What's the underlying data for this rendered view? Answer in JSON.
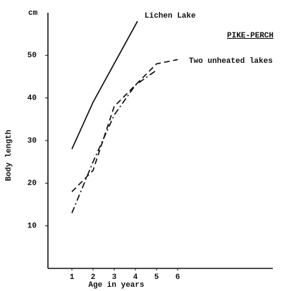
{
  "chart_data": {
    "type": "line",
    "y_label": "Body length",
    "y_unit": "cm",
    "x_label": "Age in years",
    "annotation": "PIKE-PERCH",
    "color": "#111111",
    "xlim": [
      0,
      10.5
    ],
    "xticks": [
      1,
      2,
      3,
      4,
      5,
      6
    ],
    "ylim": [
      0,
      60
    ],
    "yticks": [
      10,
      20,
      30,
      40,
      50
    ],
    "series": [
      {
        "name": "Lichen Lake",
        "dash": "none",
        "x": [
          1,
          2,
          4.1
        ],
        "values": [
          28,
          39,
          58
        ]
      },
      {
        "name": "Two unheated lakes",
        "dash": "8 5",
        "x": [
          1,
          2,
          3,
          4,
          5,
          6
        ],
        "values": [
          18,
          23,
          38,
          43,
          48,
          49
        ]
      },
      {
        "dash": "9 4 2 4",
        "x": [
          1,
          2,
          3,
          4,
          5
        ],
        "values": [
          13,
          25,
          36,
          43,
          46.5
        ]
      }
    ]
  }
}
